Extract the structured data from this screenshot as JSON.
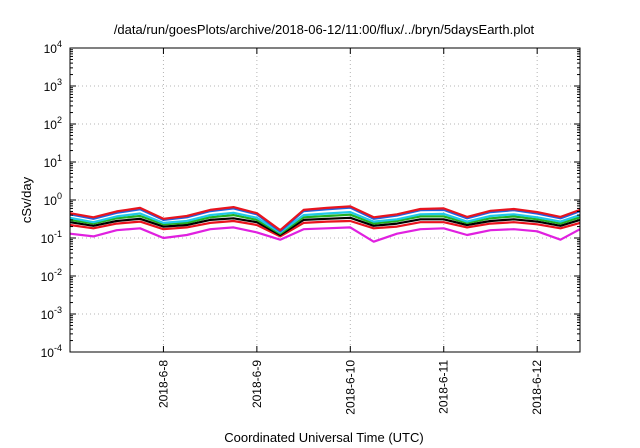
{
  "chart_data": {
    "type": "area",
    "title": "/data/run/goesPlots/archive/2018-06-12/11:00/flux/../bryn/5daysEarth.plot",
    "xlabel": "Coordinated Universal Time (UTC)",
    "ylabel": "cSv/day",
    "y_scale": "log",
    "ylim_exponent": [
      -4,
      4
    ],
    "y_tick_base": "10",
    "y_tick_exponents": [
      "-4",
      "-3",
      "-2",
      "-1",
      "0",
      "1",
      "2",
      "3",
      "4"
    ],
    "x_start": "2018-06-07T00:00",
    "x_end": "2018-06-12T11:00",
    "x_ticks": [
      {
        "date": "2018-06-08",
        "label": "2018-6-8"
      },
      {
        "date": "2018-06-09",
        "label": "2018-6-9"
      },
      {
        "date": "2018-06-10",
        "label": "2018-6-10"
      },
      {
        "date": "2018-06-11",
        "label": "2018-6-11"
      },
      {
        "date": "2018-06-12",
        "label": "2018-6-12"
      }
    ],
    "grid": true,
    "legend": "none",
    "series_points_x": [
      "2018-06-07 00:00",
      "2018-06-07 06:00",
      "2018-06-07 12:00",
      "2018-06-07 18:00",
      "2018-06-08 00:00",
      "2018-06-08 06:00",
      "2018-06-08 12:00",
      "2018-06-08 18:00",
      "2018-06-09 00:00",
      "2018-06-09 06:00",
      "2018-06-09 12:00",
      "2018-06-09 18:00",
      "2018-06-10 00:00",
      "2018-06-10 06:00",
      "2018-06-10 12:00",
      "2018-06-10 18:00",
      "2018-06-11 00:00",
      "2018-06-11 06:00",
      "2018-06-11 12:00",
      "2018-06-11 18:00",
      "2018-06-12 00:00",
      "2018-06-12 06:00",
      "2018-06-12 11:00"
    ],
    "series": [
      {
        "color": "#e8141e",
        "values": [
          0.45,
          0.35,
          0.5,
          0.62,
          0.32,
          0.38,
          0.55,
          0.65,
          0.45,
          0.16,
          0.55,
          0.62,
          0.68,
          0.35,
          0.42,
          0.58,
          0.6,
          0.36,
          0.52,
          0.58,
          0.48,
          0.36,
          0.55
        ]
      },
      {
        "color": "#2060e0",
        "values": [
          0.42,
          0.32,
          0.46,
          0.57,
          0.3,
          0.35,
          0.51,
          0.6,
          0.42,
          0.15,
          0.51,
          0.57,
          0.63,
          0.32,
          0.39,
          0.54,
          0.55,
          0.33,
          0.48,
          0.54,
          0.44,
          0.33,
          0.51
        ]
      },
      {
        "color": "#20c8e8",
        "values": [
          0.34,
          0.26,
          0.37,
          0.44,
          0.25,
          0.28,
          0.4,
          0.46,
          0.34,
          0.14,
          0.4,
          0.44,
          0.48,
          0.27,
          0.31,
          0.42,
          0.43,
          0.27,
          0.38,
          0.42,
          0.35,
          0.27,
          0.4
        ]
      },
      {
        "color": "#22b022",
        "values": [
          0.3,
          0.24,
          0.33,
          0.38,
          0.23,
          0.25,
          0.35,
          0.4,
          0.3,
          0.13,
          0.35,
          0.38,
          0.41,
          0.24,
          0.28,
          0.37,
          0.37,
          0.25,
          0.33,
          0.37,
          0.31,
          0.24,
          0.35
        ]
      },
      {
        "color": "#000000",
        "values": [
          0.26,
          0.21,
          0.28,
          0.32,
          0.2,
          0.22,
          0.3,
          0.33,
          0.26,
          0.12,
          0.3,
          0.32,
          0.34,
          0.21,
          0.24,
          0.31,
          0.31,
          0.22,
          0.28,
          0.31,
          0.27,
          0.21,
          0.3
        ]
      },
      {
        "color": "#e8141e",
        "values": [
          0.22,
          0.18,
          0.24,
          0.27,
          0.17,
          0.19,
          0.25,
          0.28,
          0.22,
          0.11,
          0.25,
          0.27,
          0.28,
          0.18,
          0.2,
          0.26,
          0.26,
          0.19,
          0.24,
          0.26,
          0.23,
          0.18,
          0.25
        ]
      },
      {
        "color": "#e020e0",
        "values": [
          0.13,
          0.11,
          0.16,
          0.18,
          0.1,
          0.12,
          0.17,
          0.19,
          0.14,
          0.09,
          0.17,
          0.18,
          0.19,
          0.08,
          0.13,
          0.17,
          0.18,
          0.12,
          0.16,
          0.17,
          0.15,
          0.09,
          0.17
        ]
      }
    ]
  }
}
